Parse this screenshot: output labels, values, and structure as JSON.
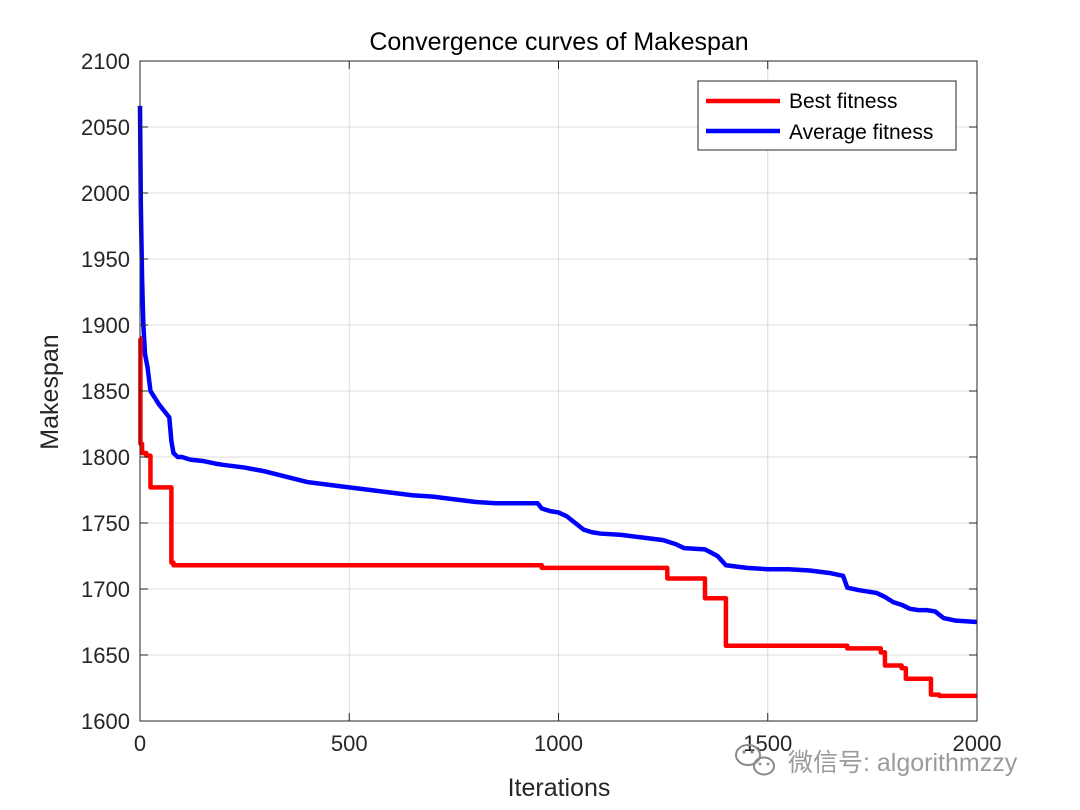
{
  "chart_data": {
    "type": "line",
    "title": "Convergence curves of Makespan",
    "xlabel": "Iterations",
    "ylabel": "Makespan",
    "xlim": [
      0,
      2000
    ],
    "ylim": [
      1600,
      2100
    ],
    "xticks": [
      0,
      500,
      1000,
      1500,
      2000
    ],
    "yticks": [
      1600,
      1650,
      1700,
      1750,
      1800,
      1850,
      1900,
      1950,
      2000,
      2050,
      2100
    ],
    "grid": true,
    "legend_position": "top-right",
    "series": [
      {
        "name": "Best fitness",
        "color": "#ff0000",
        "step": true,
        "x": [
          0,
          1,
          5,
          15,
          25,
          70,
          75,
          80,
          950,
          960,
          1250,
          1260,
          1340,
          1350,
          1390,
          1400,
          1680,
          1690,
          1760,
          1770,
          1780,
          1790,
          1820,
          1830,
          1860,
          1870,
          1890,
          1910,
          2000
        ],
        "y": [
          1890,
          1810,
          1803,
          1801,
          1777,
          1777,
          1720,
          1718,
          1718,
          1716,
          1716,
          1708,
          1708,
          1693,
          1693,
          1657,
          1657,
          1655,
          1655,
          1652,
          1642,
          1642,
          1640,
          1632,
          1632,
          1632,
          1620,
          1619,
          1619
        ]
      },
      {
        "name": "Average fitness",
        "color": "#0000ff",
        "step": false,
        "x": [
          0,
          2,
          5,
          8,
          12,
          18,
          25,
          35,
          45,
          55,
          65,
          70,
          75,
          80,
          90,
          100,
          120,
          150,
          180,
          200,
          250,
          300,
          350,
          400,
          450,
          500,
          550,
          600,
          650,
          700,
          750,
          800,
          850,
          900,
          950,
          960,
          980,
          1000,
          1020,
          1040,
          1060,
          1080,
          1100,
          1150,
          1200,
          1250,
          1280,
          1300,
          1350,
          1380,
          1400,
          1450,
          1500,
          1550,
          1600,
          1650,
          1680,
          1690,
          1720,
          1760,
          1780,
          1800,
          1820,
          1840,
          1860,
          1880,
          1900,
          1920,
          1950,
          2000
        ],
        "y": [
          2066,
          1990,
          1935,
          1900,
          1878,
          1868,
          1850,
          1845,
          1840,
          1836,
          1832,
          1830,
          1812,
          1803,
          1800,
          1800,
          1798,
          1797,
          1795,
          1794,
          1792,
          1789,
          1785,
          1781,
          1779,
          1777,
          1775,
          1773,
          1771,
          1770,
          1768,
          1766,
          1765,
          1765,
          1765,
          1761,
          1759,
          1758,
          1755,
          1750,
          1745,
          1743,
          1742,
          1741,
          1739,
          1737,
          1734,
          1731,
          1730,
          1725,
          1718,
          1716,
          1715,
          1715,
          1714,
          1712,
          1710,
          1701,
          1699,
          1697,
          1694,
          1690,
          1688,
          1685,
          1684,
          1684,
          1683,
          1678,
          1676,
          1675
        ]
      }
    ]
  },
  "watermark": {
    "text": "微信号: algorithmzzy",
    "icon": "wechat-icon"
  }
}
